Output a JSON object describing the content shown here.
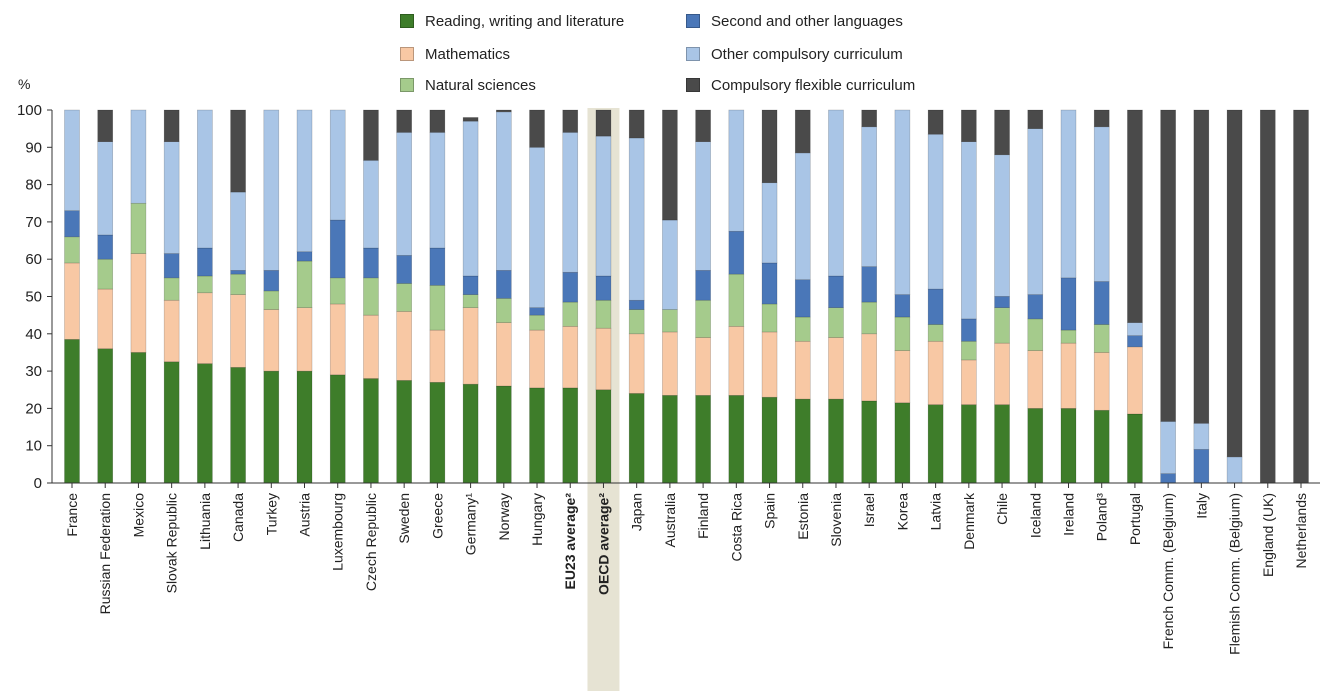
{
  "chart_data": {
    "type": "bar",
    "stacked": true,
    "ylabel": "%",
    "ylim": [
      0,
      100
    ],
    "yticks": [
      0,
      10,
      20,
      30,
      40,
      50,
      60,
      70,
      80,
      90,
      100
    ],
    "grid": false,
    "legend_position": "top",
    "highlighted_category": "OECD average²",
    "bold_categories": [
      "EU23 average²",
      "OECD average²"
    ],
    "categories": [
      "France",
      "Russian Federation",
      "Mexico",
      "Slovak Republic",
      "Lithuania",
      "Canada",
      "Turkey",
      "Austria",
      "Luxembourg",
      "Czech Republic",
      "Sweden",
      "Greece",
      "Germany¹",
      "Norway",
      "Hungary",
      "EU23 average²",
      "OECD average²",
      "Japan",
      "Australia",
      "Finland",
      "Costa Rica",
      "Spain",
      "Estonia",
      "Slovenia",
      "Israel",
      "Korea",
      "Latvia",
      "Denmark",
      "Chile",
      "Iceland",
      "Ireland",
      "Poland³",
      "Portugal",
      "French Comm. (Belgium)",
      "Italy",
      "Flemish Comm. (Belgium)",
      "England (UK)",
      "Netherlands"
    ],
    "series": [
      {
        "name": "Reading, writing and literature",
        "color": "#3e7d2a",
        "values": [
          38.5,
          36,
          35,
          32.5,
          32,
          31,
          30,
          30,
          29,
          28,
          27.5,
          27,
          26.5,
          26,
          25.5,
          25.5,
          25,
          24,
          23.5,
          23.5,
          23.5,
          23,
          22.5,
          22.5,
          22,
          21.5,
          21,
          21,
          21,
          20,
          20,
          19.5,
          18.5,
          0,
          0,
          0,
          0,
          0
        ]
      },
      {
        "name": "Mathematics",
        "color": "#f8c8a4",
        "values": [
          20.5,
          16,
          26.5,
          16.5,
          19,
          19.5,
          16.5,
          17,
          19,
          17,
          18.5,
          14,
          20.5,
          17,
          15.5,
          16.5,
          16.5,
          16,
          17,
          15.5,
          18.5,
          17.5,
          15.5,
          16.5,
          18,
          14,
          17,
          12,
          16.5,
          15.5,
          17.5,
          15.5,
          18,
          0,
          0,
          0,
          0,
          0
        ]
      },
      {
        "name": "Natural sciences",
        "color": "#a5cb8c",
        "values": [
          7,
          8,
          13.5,
          6,
          4.5,
          5.5,
          5,
          12.5,
          7,
          10,
          7.5,
          12,
          3.5,
          6.5,
          4,
          6.5,
          7.5,
          6.5,
          6,
          10,
          14,
          7.5,
          6.5,
          8,
          8.5,
          9,
          4.5,
          5,
          9.5,
          8.5,
          3.5,
          7.5,
          0,
          0,
          0,
          0,
          0,
          0
        ]
      },
      {
        "name": "Second and other languages",
        "color": "#4a77b8",
        "values": [
          7,
          6.5,
          0,
          6.5,
          7.5,
          1,
          5.5,
          2.5,
          15.5,
          8,
          7.5,
          10,
          5,
          7.5,
          2,
          8,
          6.5,
          2.5,
          0,
          8,
          11.5,
          11,
          10,
          8.5,
          9.5,
          6,
          9.5,
          6,
          3,
          6.5,
          14,
          11.5,
          3,
          2.5,
          9,
          0,
          0,
          0
        ]
      },
      {
        "name": "Other compulsory curriculum",
        "color": "#a9c5e6",
        "values": [
          27,
          25,
          25,
          30,
          37,
          21,
          43,
          38,
          29.5,
          23.5,
          33,
          31,
          41.5,
          42.5,
          43,
          37.5,
          37.5,
          43.5,
          24,
          34.5,
          32.5,
          21.5,
          34,
          44.5,
          37.5,
          49.5,
          41.5,
          47.5,
          38,
          44.5,
          45,
          41.5,
          3.5,
          14,
          7,
          7,
          0,
          0
        ]
      },
      {
        "name": "Compulsory flexible curriculum",
        "color": "#4a4a4a",
        "values": [
          0,
          8.5,
          0,
          8.5,
          0,
          22,
          0,
          0,
          0,
          13.5,
          6,
          6,
          1,
          0.5,
          10,
          6,
          7,
          7.5,
          29.5,
          8.5,
          0,
          19.5,
          11.5,
          0,
          4.5,
          0,
          6.5,
          8.5,
          12,
          5,
          0,
          4.5,
          57,
          83.5,
          84,
          93,
          100,
          100
        ]
      }
    ]
  }
}
